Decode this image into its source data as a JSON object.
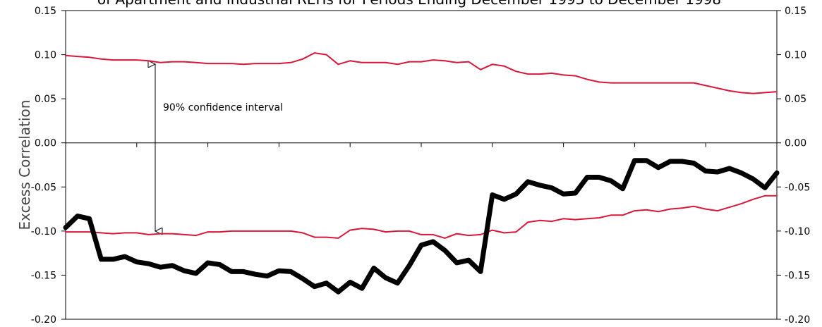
{
  "chart_data": {
    "type": "line",
    "title": "of Apartment and Industrial REITs for Periods Ending December 1993 to December 1998",
    "xlabel": "",
    "ylabel": "Excess Correlation",
    "ylim": [
      -0.2,
      0.15
    ],
    "yticks": [
      "0.15",
      "0.10",
      "0.05",
      "0.00",
      "-0.05",
      "-0.10",
      "-0.15",
      "-0.20"
    ],
    "grid": false,
    "annotation": "90% confidence interval",
    "colors": {
      "excess": "#000000",
      "bands": "#d8173a"
    },
    "x": [
      0,
      1,
      2,
      3,
      4,
      5,
      6,
      7,
      8,
      9,
      10,
      11,
      12,
      13,
      14,
      15,
      16,
      17,
      18,
      19,
      20,
      21,
      22,
      23,
      24,
      25,
      26,
      27,
      28,
      29,
      30,
      31,
      32,
      33,
      34,
      35,
      36,
      37,
      38,
      39,
      40,
      41,
      42,
      43,
      44,
      45,
      46,
      47,
      48,
      49,
      50,
      51,
      52,
      53,
      54,
      55,
      56,
      57,
      58,
      59,
      60
    ],
    "series": [
      {
        "key": "excess",
        "values": [
          -0.096,
          -0.083,
          -0.086,
          -0.132,
          -0.132,
          -0.129,
          -0.135,
          -0.137,
          -0.141,
          -0.139,
          -0.145,
          -0.148,
          -0.136,
          -0.138,
          -0.146,
          -0.146,
          -0.149,
          -0.151,
          -0.145,
          -0.146,
          -0.154,
          -0.163,
          -0.159,
          -0.169,
          -0.158,
          -0.165,
          -0.142,
          -0.153,
          -0.159,
          -0.139,
          -0.116,
          -0.112,
          -0.122,
          -0.136,
          -0.133,
          -0.146,
          -0.059,
          -0.064,
          -0.058,
          -0.044,
          -0.048,
          -0.051,
          -0.058,
          -0.057,
          -0.039,
          -0.039,
          -0.043,
          -0.052,
          -0.02,
          -0.02,
          -0.028,
          -0.021,
          -0.021,
          -0.023,
          -0.032,
          -0.033,
          -0.029,
          -0.034,
          -0.041,
          -0.051,
          -0.034
        ]
      },
      {
        "key": "upper_bound",
        "values": [
          0.099,
          0.098,
          0.097,
          0.095,
          0.094,
          0.094,
          0.094,
          0.093,
          0.091,
          0.092,
          0.092,
          0.091,
          0.09,
          0.09,
          0.09,
          0.089,
          0.09,
          0.09,
          0.09,
          0.091,
          0.095,
          0.102,
          0.1,
          0.089,
          0.093,
          0.091,
          0.091,
          0.091,
          0.089,
          0.092,
          0.092,
          0.094,
          0.093,
          0.091,
          0.092,
          0.083,
          0.089,
          0.087,
          0.081,
          0.078,
          0.078,
          0.079,
          0.077,
          0.076,
          0.072,
          0.069,
          0.068,
          0.068,
          0.068,
          0.068,
          0.068,
          0.068,
          0.068,
          0.068,
          0.065,
          0.062,
          0.059,
          0.057,
          0.056,
          0.057,
          0.058
        ]
      },
      {
        "key": "lower_bound",
        "values": [
          -0.101,
          -0.101,
          -0.101,
          -0.102,
          -0.103,
          -0.102,
          -0.102,
          -0.104,
          -0.103,
          -0.103,
          -0.104,
          -0.105,
          -0.101,
          -0.101,
          -0.1,
          -0.1,
          -0.1,
          -0.1,
          -0.1,
          -0.1,
          -0.102,
          -0.107,
          -0.107,
          -0.108,
          -0.099,
          -0.097,
          -0.098,
          -0.101,
          -0.1,
          -0.1,
          -0.104,
          -0.104,
          -0.108,
          -0.103,
          -0.105,
          -0.104,
          -0.099,
          -0.102,
          -0.101,
          -0.09,
          -0.088,
          -0.089,
          -0.086,
          -0.087,
          -0.086,
          -0.085,
          -0.082,
          -0.082,
          -0.077,
          -0.076,
          -0.078,
          -0.075,
          -0.074,
          -0.072,
          -0.075,
          -0.077,
          -0.073,
          -0.069,
          -0.064,
          -0.06,
          -0.06
        ]
      }
    ]
  }
}
